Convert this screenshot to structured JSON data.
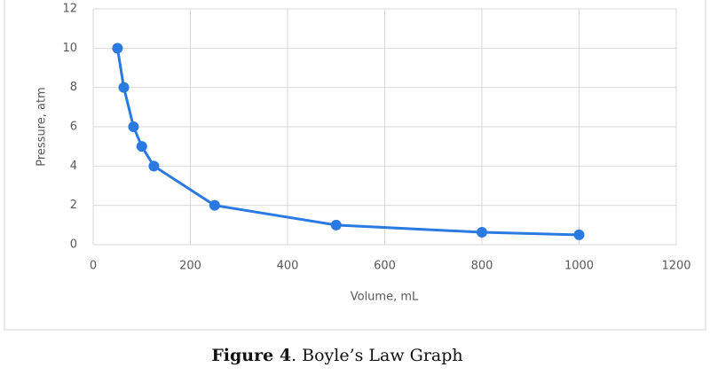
{
  "chart_data": {
    "type": "line",
    "x_label": "Volume, mL",
    "y_label": "Pressure, atm",
    "x": [
      50,
      63,
      83,
      100,
      125,
      250,
      500,
      800,
      1000
    ],
    "series": [
      {
        "color": "#2a7ae2",
        "values": [
          10,
          8,
          6,
          5,
          4,
          2,
          1,
          0.63,
          0.5
        ]
      }
    ],
    "xlim": [
      0,
      1200
    ],
    "xticks": [
      0,
      200,
      400,
      600,
      800,
      1000,
      1200
    ],
    "ylim": [
      0,
      12
    ],
    "yticks": [
      0,
      2,
      4,
      6,
      8,
      10,
      12
    ],
    "grid": true,
    "markers": true
  },
  "caption": {
    "label": "Figure 4",
    "text": ". Boyle’s Law Graph"
  }
}
